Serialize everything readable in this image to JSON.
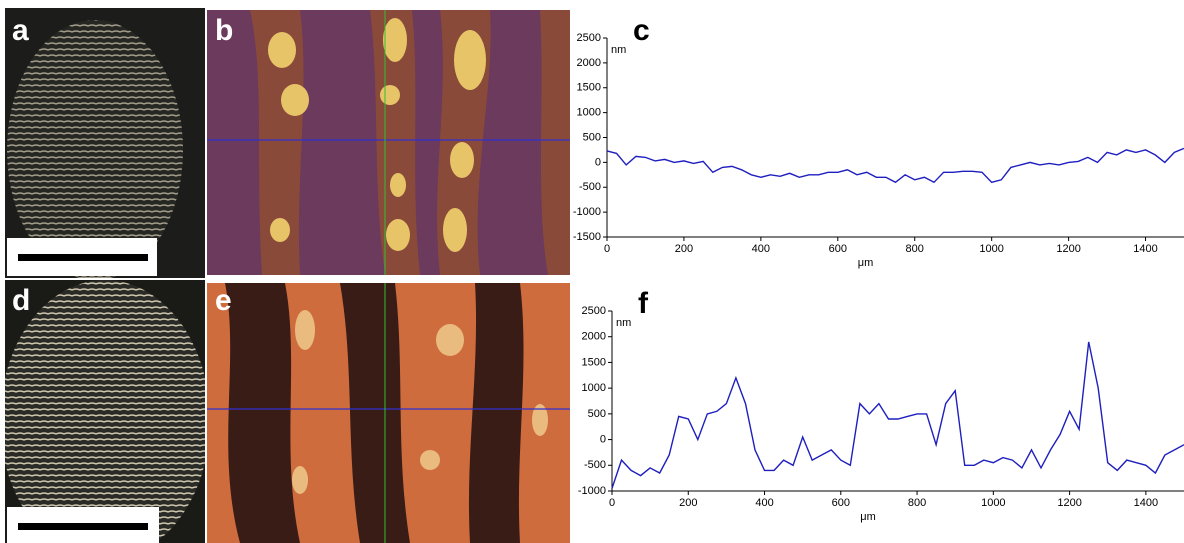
{
  "photo_panels": [
    "a",
    "b",
    "d",
    "e"
  ],
  "chart_data": [
    {
      "type": "line",
      "label": "c",
      "y_unit": "nm",
      "xlabel": "μm",
      "color": "#1f1fbf",
      "x": [
        0,
        25,
        50,
        75,
        100,
        125,
        150,
        175,
        200,
        225,
        250,
        275,
        300,
        325,
        350,
        375,
        400,
        425,
        450,
        475,
        500,
        525,
        550,
        575,
        600,
        625,
        650,
        675,
        700,
        725,
        750,
        775,
        800,
        825,
        850,
        875,
        900,
        925,
        950,
        975,
        1000,
        1025,
        1050,
        1075,
        1100,
        1125,
        1150,
        1175,
        1200,
        1225,
        1250,
        1275,
        1300,
        1325,
        1350,
        1375,
        1400,
        1425,
        1450,
        1475,
        1500
      ],
      "values": [
        230,
        180,
        -50,
        120,
        100,
        30,
        60,
        0,
        30,
        -20,
        20,
        -200,
        -100,
        -80,
        -150,
        -250,
        -300,
        -250,
        -280,
        -220,
        -300,
        -250,
        -250,
        -200,
        -200,
        -150,
        -250,
        -200,
        -300,
        -300,
        -400,
        -250,
        -350,
        -300,
        -400,
        -200,
        -200,
        -180,
        -180,
        -200,
        -400,
        -350,
        -100,
        -50,
        0,
        -50,
        -20,
        -50,
        0,
        20,
        100,
        0,
        200,
        150,
        250,
        200,
        250,
        150,
        0,
        200,
        280
      ],
      "xlim": [
        0,
        1500
      ],
      "xticks": [
        0,
        200,
        400,
        600,
        800,
        1000,
        1200,
        1400
      ],
      "ylim": [
        -1500,
        2500
      ],
      "yticks": [
        -1500,
        -1000,
        -500,
        0,
        500,
        1000,
        1500,
        2000,
        2500
      ]
    },
    {
      "type": "line",
      "label": "f",
      "y_unit": "nm",
      "xlabel": "μm",
      "color": "#1f1fbf",
      "x": [
        0,
        25,
        50,
        75,
        100,
        125,
        150,
        175,
        200,
        225,
        250,
        275,
        300,
        325,
        350,
        375,
        400,
        425,
        450,
        475,
        500,
        525,
        550,
        575,
        600,
        625,
        650,
        675,
        700,
        725,
        750,
        775,
        800,
        825,
        850,
        875,
        900,
        925,
        950,
        975,
        1000,
        1025,
        1050,
        1075,
        1100,
        1125,
        1150,
        1175,
        1200,
        1225,
        1250,
        1275,
        1300,
        1325,
        1350,
        1375,
        1400,
        1425,
        1450,
        1475,
        1500
      ],
      "values": [
        -950,
        -400,
        -600,
        -700,
        -550,
        -650,
        -300,
        450,
        400,
        0,
        500,
        550,
        700,
        1200,
        700,
        -200,
        -600,
        -600,
        -400,
        -500,
        50,
        -400,
        -300,
        -200,
        -400,
        -500,
        700,
        500,
        700,
        400,
        400,
        450,
        500,
        500,
        -100,
        700,
        950,
        -500,
        -500,
        -400,
        -450,
        -350,
        -400,
        -550,
        -200,
        -550,
        -200,
        100,
        550,
        200,
        1900,
        1000,
        -450,
        -600,
        -400,
        -450,
        -500,
        -650,
        -300,
        -200,
        -100
      ],
      "xlim": [
        0,
        1500
      ],
      "xticks": [
        0,
        200,
        400,
        600,
        800,
        1000,
        1200,
        1400
      ],
      "ylim": [
        -1000,
        2500
      ],
      "yticks": [
        -1000,
        -500,
        0,
        500,
        1000,
        1500,
        2000,
        2500
      ]
    }
  ]
}
